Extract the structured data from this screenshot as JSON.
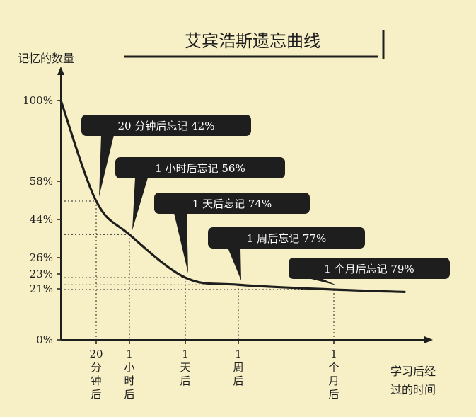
{
  "chart_data": {
    "type": "line",
    "title": "艾宾浩斯遗忘曲线",
    "ylabel": "记忆的数量",
    "xlabel": "学习后经过的时间",
    "y_ticks": [
      "100%",
      "58%",
      "44%",
      "26%",
      "23%",
      "21%",
      "0%"
    ],
    "ylim": [
      0,
      100
    ],
    "grid": "dotted guide lines at marked points",
    "series": [
      {
        "values": [
          100,
          58,
          44,
          26,
          23,
          21
        ],
        "categories": [
          "0",
          "20分钟后",
          "1小时后",
          "1天后",
          "1周后",
          "1个月后"
        ]
      }
    ],
    "x_tick_labels": [
      [
        "20",
        "分",
        "钟",
        "后"
      ],
      [
        "1",
        "小",
        "时",
        "后"
      ],
      [
        "1",
        "天",
        "后"
      ],
      [
        "1",
        "周",
        "后"
      ],
      [
        "1",
        "个",
        "月",
        "后"
      ]
    ],
    "annotations": [
      "20 分钟后忘记 42%",
      "1 小时后忘记 56%",
      "1 天后忘记 74%",
      "1 周后忘记 77%",
      "1 个月后忘记 79%"
    ],
    "colors": {
      "background": "#f7f0c6",
      "line": "#1e1e1e",
      "bubble": "#1e1e1e",
      "bubble_text": "#ffffff"
    }
  }
}
